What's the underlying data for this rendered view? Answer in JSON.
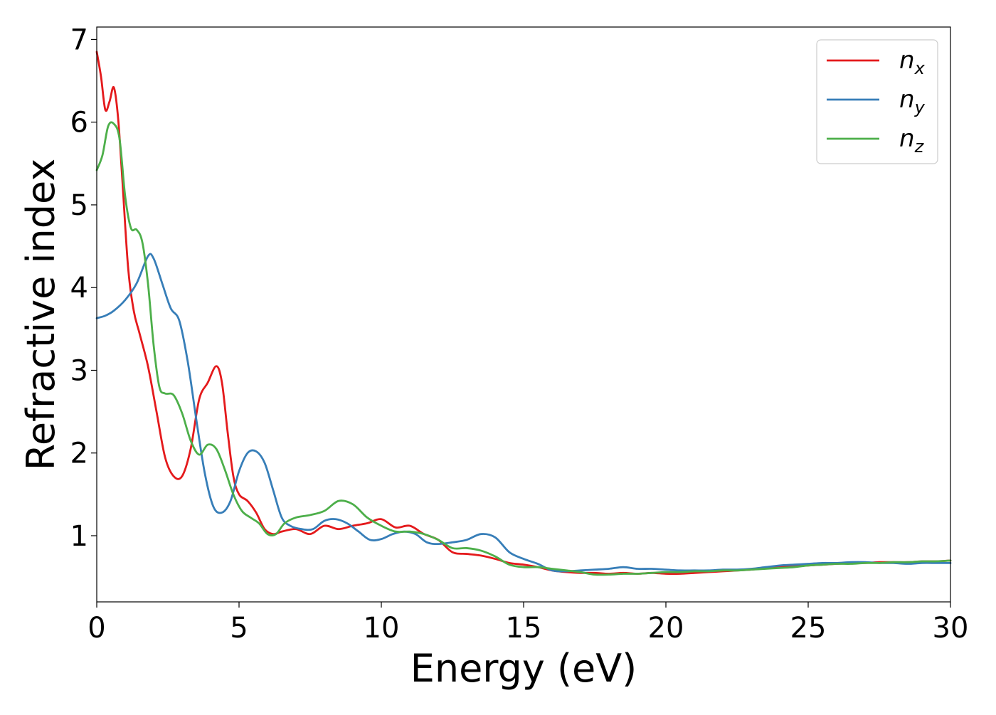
{
  "chart_data": {
    "type": "line",
    "title": "",
    "xlabel": "Energy (eV)",
    "ylabel": "Refractive index",
    "xlim": [
      0,
      30
    ],
    "ylim": [
      0.2,
      7.15
    ],
    "xticks": [
      0,
      5,
      10,
      15,
      20,
      25,
      30
    ],
    "xtick_labels": [
      "0",
      "5",
      "10",
      "15",
      "20",
      "25",
      "30"
    ],
    "yticks": [
      1,
      2,
      3,
      4,
      5,
      6,
      7
    ],
    "ytick_labels": [
      "1",
      "2",
      "3",
      "4",
      "5",
      "6",
      "7"
    ],
    "grid": false,
    "legend_position": "top-right",
    "series": [
      {
        "name": "n_x",
        "legend_base": "n",
        "legend_sub": "x",
        "color": "#e41a1c",
        "x": [
          0,
          0.15,
          0.3,
          0.45,
          0.6,
          0.75,
          0.9,
          1.1,
          1.3,
          1.5,
          1.8,
          2.1,
          2.4,
          2.7,
          3.0,
          3.3,
          3.6,
          3.9,
          4.2,
          4.4,
          4.6,
          4.8,
          5.0,
          5.3,
          5.6,
          5.9,
          6.2,
          6.5,
          7.0,
          7.5,
          8.0,
          8.5,
          9.0,
          9.5,
          10.0,
          10.5,
          11.0,
          11.5,
          12.0,
          12.5,
          13.0,
          13.5,
          14.0,
          14.5,
          15.0,
          15.5,
          16.0,
          16.5,
          17.0,
          17.5,
          18.0,
          18.5,
          19.0,
          19.5,
          20.0,
          20.5,
          21.0,
          21.5,
          22.0,
          22.5,
          23.0,
          23.5,
          24.0,
          24.5,
          25.0,
          25.5,
          26.0,
          26.5,
          27.0,
          27.5,
          28.0,
          28.5,
          29.0,
          29.5,
          30.0
        ],
        "y": [
          6.85,
          6.55,
          6.15,
          6.25,
          6.42,
          6.05,
          5.3,
          4.25,
          3.72,
          3.45,
          3.05,
          2.5,
          1.95,
          1.72,
          1.72,
          2.05,
          2.65,
          2.85,
          3.05,
          2.85,
          2.25,
          1.72,
          1.5,
          1.42,
          1.28,
          1.08,
          1.02,
          1.05,
          1.08,
          1.02,
          1.12,
          1.08,
          1.12,
          1.15,
          1.2,
          1.1,
          1.12,
          1.02,
          0.95,
          0.8,
          0.78,
          0.76,
          0.72,
          0.67,
          0.65,
          0.62,
          0.58,
          0.56,
          0.55,
          0.55,
          0.54,
          0.55,
          0.54,
          0.55,
          0.54,
          0.54,
          0.55,
          0.56,
          0.57,
          0.58,
          0.59,
          0.61,
          0.62,
          0.63,
          0.64,
          0.65,
          0.66,
          0.67,
          0.67,
          0.68,
          0.68,
          0.68,
          0.69,
          0.69,
          0.7
        ]
      },
      {
        "name": "n_y",
        "legend_base": "n",
        "legend_sub": "y",
        "color": "#377eb8",
        "x": [
          0,
          0.3,
          0.6,
          1.0,
          1.4,
          1.8,
          2.0,
          2.3,
          2.6,
          2.9,
          3.2,
          3.5,
          3.8,
          4.1,
          4.4,
          4.7,
          5.0,
          5.3,
          5.6,
          5.9,
          6.2,
          6.5,
          6.8,
          7.2,
          7.6,
          8.0,
          8.4,
          8.8,
          9.2,
          9.6,
          10.0,
          10.4,
          10.8,
          11.2,
          11.6,
          12.0,
          12.5,
          13.0,
          13.5,
          14.0,
          14.5,
          15.0,
          15.5,
          16.0,
          16.5,
          17.0,
          17.5,
          18.0,
          18.5,
          19.0,
          19.5,
          20.0,
          20.5,
          21.0,
          21.5,
          22.0,
          22.5,
          23.0,
          23.5,
          24.0,
          24.5,
          25.0,
          25.5,
          26.0,
          26.5,
          27.0,
          27.5,
          28.0,
          28.5,
          29.0,
          29.5,
          30.0
        ],
        "y": [
          3.63,
          3.66,
          3.72,
          3.85,
          4.05,
          4.38,
          4.35,
          4.05,
          3.75,
          3.6,
          3.1,
          2.4,
          1.75,
          1.35,
          1.28,
          1.42,
          1.78,
          2.0,
          2.02,
          1.88,
          1.55,
          1.22,
          1.12,
          1.08,
          1.08,
          1.18,
          1.2,
          1.15,
          1.05,
          0.95,
          0.96,
          1.02,
          1.05,
          1.02,
          0.92,
          0.9,
          0.92,
          0.95,
          1.02,
          0.98,
          0.8,
          0.72,
          0.66,
          0.58,
          0.57,
          0.58,
          0.59,
          0.6,
          0.62,
          0.6,
          0.6,
          0.59,
          0.58,
          0.58,
          0.58,
          0.59,
          0.59,
          0.6,
          0.62,
          0.64,
          0.65,
          0.66,
          0.67,
          0.67,
          0.68,
          0.68,
          0.67,
          0.67,
          0.66,
          0.67,
          0.67,
          0.67
        ]
      },
      {
        "name": "n_z",
        "legend_base": "n",
        "legend_sub": "z",
        "color": "#4daf4a",
        "x": [
          0,
          0.2,
          0.4,
          0.6,
          0.8,
          1.0,
          1.2,
          1.4,
          1.6,
          1.8,
          2.0,
          2.2,
          2.4,
          2.7,
          3.0,
          3.3,
          3.6,
          3.9,
          4.2,
          4.5,
          4.8,
          5.1,
          5.4,
          5.7,
          6.0,
          6.3,
          6.6,
          7.0,
          7.5,
          8.0,
          8.5,
          9.0,
          9.5,
          10.0,
          10.5,
          11.0,
          11.5,
          12.0,
          12.5,
          13.0,
          13.5,
          14.0,
          14.5,
          15.0,
          15.5,
          16.0,
          16.5,
          17.0,
          17.5,
          18.0,
          18.5,
          19.0,
          19.5,
          20.0,
          20.5,
          21.0,
          21.5,
          22.0,
          22.5,
          23.0,
          23.5,
          24.0,
          24.5,
          25.0,
          25.5,
          26.0,
          26.5,
          27.0,
          27.5,
          28.0,
          28.5,
          29.0,
          29.5,
          30.0
        ],
        "y": [
          5.42,
          5.6,
          5.95,
          5.98,
          5.8,
          5.1,
          4.72,
          4.7,
          4.55,
          4.05,
          3.3,
          2.8,
          2.72,
          2.7,
          2.48,
          2.15,
          1.98,
          2.1,
          2.05,
          1.8,
          1.5,
          1.3,
          1.22,
          1.15,
          1.02,
          1.02,
          1.15,
          1.22,
          1.25,
          1.3,
          1.42,
          1.38,
          1.22,
          1.12,
          1.05,
          1.05,
          1.02,
          0.95,
          0.85,
          0.85,
          0.82,
          0.75,
          0.65,
          0.62,
          0.62,
          0.6,
          0.58,
          0.56,
          0.53,
          0.53,
          0.54,
          0.54,
          0.55,
          0.56,
          0.56,
          0.57,
          0.57,
          0.58,
          0.58,
          0.59,
          0.6,
          0.61,
          0.62,
          0.64,
          0.65,
          0.66,
          0.66,
          0.67,
          0.67,
          0.68,
          0.68,
          0.69,
          0.69,
          0.7
        ]
      }
    ]
  }
}
